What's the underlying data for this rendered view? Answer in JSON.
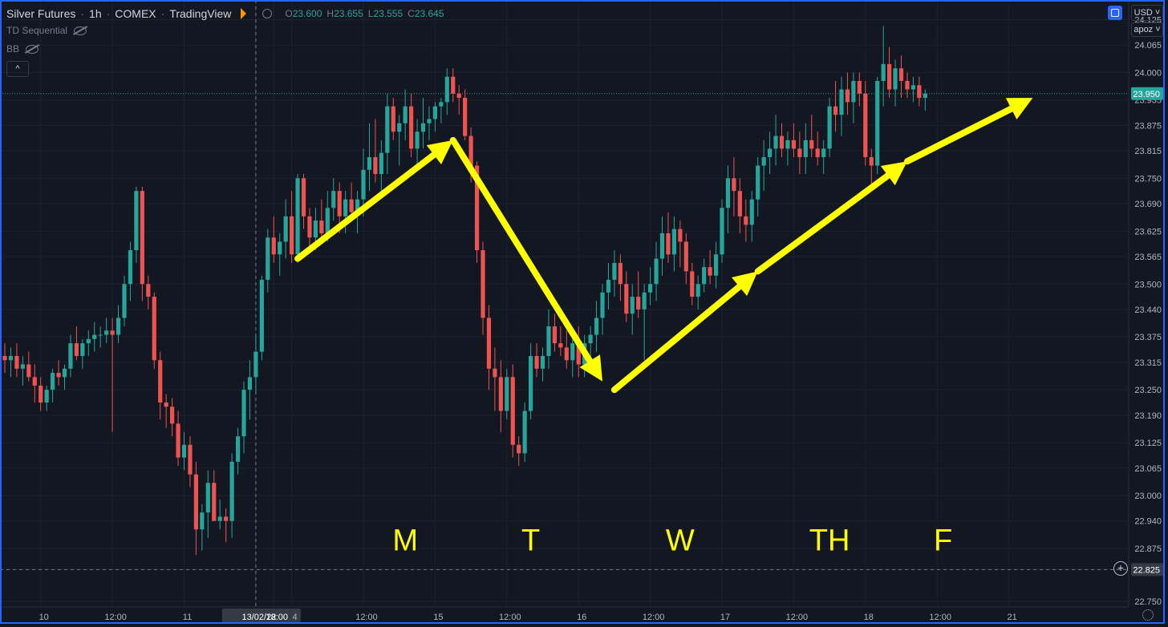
{
  "header": {
    "symbol": "Silver Futures",
    "interval": "1h",
    "exchange": "COMEX",
    "platform": "TradingView",
    "ohlc": {
      "o_label": "O",
      "o": "23.600",
      "h_label": "H",
      "h": "23.655",
      "l_label": "L",
      "l": "23.555",
      "c_label": "C",
      "c": "23.645"
    }
  },
  "indicators": [
    "TD Sequential",
    "BB"
  ],
  "toolbar": {
    "currency": "USD",
    "user": "apoz",
    "collapse_glyph": "^"
  },
  "colors": {
    "background": "#131722",
    "up": "#26a69a",
    "down": "#ef5350",
    "annotation": "#ffff00",
    "frame": "#2962ff"
  },
  "chart_data": {
    "type": "candlestick",
    "ylim": [
      22.75,
      24.16
    ],
    "y_ticks": [
      "24.125",
      "24.065",
      "24.000",
      "23.935",
      "23.875",
      "23.815",
      "23.750",
      "23.690",
      "23.625",
      "23.565",
      "23.500",
      "23.440",
      "23.375",
      "23.315",
      "23.250",
      "23.190",
      "23.125",
      "23.065",
      "23.000",
      "22.940",
      "22.875",
      "22.825",
      "22.750"
    ],
    "x_ticks": [
      {
        "label": "10",
        "index": 6
      },
      {
        "label": "12:00",
        "index": 18
      },
      {
        "label": "11",
        "index": 30
      },
      {
        "label": "13/02/22",
        "index": 42
      },
      {
        "label": "18:00",
        "index": 45
      },
      {
        "label": "4",
        "index": 48
      },
      {
        "label": "12:00",
        "index": 60
      },
      {
        "label": "15",
        "index": 72
      },
      {
        "label": "12:00",
        "index": 84
      },
      {
        "label": "16",
        "index": 96
      },
      {
        "label": "12:00",
        "index": 108
      },
      {
        "label": "17",
        "index": 120
      },
      {
        "label": "12:00",
        "index": 132
      },
      {
        "label": "18",
        "index": 144
      },
      {
        "label": "12:00",
        "index": 156
      },
      {
        "label": "21",
        "index": 168
      }
    ],
    "crosshair": {
      "index": 42,
      "value_label": "22.825",
      "value": 22.825
    },
    "last_price": {
      "value": 23.95,
      "label": "23.950"
    },
    "day_labels": [
      {
        "text": "M",
        "index": 67,
        "value": 22.87
      },
      {
        "text": "T",
        "index": 88,
        "value": 22.87
      },
      {
        "text": "W",
        "index": 113,
        "value": 22.87
      },
      {
        "text": "TH",
        "index": 138,
        "value": 22.87
      },
      {
        "text": "F",
        "index": 157,
        "value": 22.87
      }
    ],
    "arrows": [
      {
        "from": [
          49,
          23.56
        ],
        "to": [
          75,
          23.84
        ]
      },
      {
        "from": [
          75,
          23.84
        ],
        "to": [
          100,
          23.27
        ]
      },
      {
        "from": [
          102,
          23.25
        ],
        "to": [
          126,
          23.53
        ]
      },
      {
        "from": [
          126,
          23.53
        ],
        "to": [
          151,
          23.79
        ]
      },
      {
        "from": [
          151,
          23.79
        ],
        "to": [
          172,
          23.94
        ]
      }
    ],
    "candles": [
      [
        23.33,
        23.36,
        23.29,
        23.32
      ],
      [
        23.32,
        23.35,
        23.28,
        23.33
      ],
      [
        23.33,
        23.36,
        23.28,
        23.3
      ],
      [
        23.3,
        23.33,
        23.26,
        23.31
      ],
      [
        23.31,
        23.34,
        23.27,
        23.28
      ],
      [
        23.28,
        23.31,
        23.22,
        23.26
      ],
      [
        23.26,
        23.28,
        23.2,
        23.22
      ],
      [
        23.22,
        23.26,
        23.2,
        23.25
      ],
      [
        23.25,
        23.3,
        23.22,
        23.29
      ],
      [
        23.29,
        23.32,
        23.26,
        23.28
      ],
      [
        23.28,
        23.31,
        23.25,
        23.3
      ],
      [
        23.3,
        23.38,
        23.28,
        23.36
      ],
      [
        23.36,
        23.4,
        23.32,
        23.33
      ],
      [
        23.33,
        23.37,
        23.3,
        23.36
      ],
      [
        23.36,
        23.39,
        23.33,
        23.37
      ],
      [
        23.37,
        23.41,
        23.34,
        23.38
      ],
      [
        23.38,
        23.4,
        23.35,
        23.38
      ],
      [
        23.38,
        23.42,
        23.36,
        23.39
      ],
      [
        23.39,
        23.42,
        23.15,
        23.38
      ],
      [
        23.38,
        23.45,
        23.36,
        23.42
      ],
      [
        23.42,
        23.52,
        23.4,
        23.5
      ],
      [
        23.5,
        23.6,
        23.46,
        23.58
      ],
      [
        23.58,
        23.73,
        23.55,
        23.72
      ],
      [
        23.72,
        23.73,
        23.46,
        23.5
      ],
      [
        23.5,
        23.52,
        23.44,
        23.47
      ],
      [
        23.47,
        23.48,
        23.3,
        23.32
      ],
      [
        23.32,
        23.34,
        23.18,
        23.22
      ],
      [
        23.22,
        23.24,
        23.16,
        23.21
      ],
      [
        23.21,
        23.23,
        23.14,
        23.17
      ],
      [
        23.17,
        23.2,
        23.07,
        23.09
      ],
      [
        23.09,
        23.15,
        23.06,
        23.12
      ],
      [
        23.12,
        23.14,
        23.02,
        23.05
      ],
      [
        23.05,
        23.08,
        22.86,
        22.92
      ],
      [
        22.92,
        22.98,
        22.87,
        22.96
      ],
      [
        22.96,
        23.06,
        22.9,
        23.03
      ],
      [
        23.03,
        23.06,
        22.94,
        22.94
      ],
      [
        22.94,
        22.99,
        22.92,
        22.95
      ],
      [
        22.95,
        22.97,
        22.89,
        22.94
      ],
      [
        22.94,
        23.1,
        22.9,
        23.08
      ],
      [
        23.08,
        23.16,
        23.05,
        23.14
      ],
      [
        23.14,
        23.27,
        23.1,
        23.25
      ],
      [
        23.25,
        23.32,
        23.18,
        23.28
      ],
      [
        23.28,
        23.38,
        23.24,
        23.34
      ],
      [
        23.34,
        23.52,
        23.32,
        23.51
      ],
      [
        23.51,
        23.63,
        23.48,
        23.61
      ],
      [
        23.61,
        23.66,
        23.55,
        23.57
      ],
      [
        23.57,
        23.62,
        23.52,
        23.6
      ],
      [
        23.6,
        23.7,
        23.56,
        23.66
      ],
      [
        23.66,
        23.72,
        23.55,
        23.57
      ],
      [
        23.57,
        23.76,
        23.55,
        23.75
      ],
      [
        23.75,
        23.76,
        23.63,
        23.66
      ],
      [
        23.66,
        23.68,
        23.58,
        23.61
      ],
      [
        23.61,
        23.68,
        23.58,
        23.65
      ],
      [
        23.65,
        23.7,
        23.6,
        23.62
      ],
      [
        23.62,
        23.72,
        23.6,
        23.68
      ],
      [
        23.68,
        23.75,
        23.65,
        23.72
      ],
      [
        23.72,
        23.74,
        23.62,
        23.66
      ],
      [
        23.66,
        23.72,
        23.62,
        23.7
      ],
      [
        23.7,
        23.74,
        23.66,
        23.67
      ],
      [
        23.67,
        23.72,
        23.62,
        23.7
      ],
      [
        23.7,
        23.82,
        23.66,
        23.77
      ],
      [
        23.77,
        23.88,
        23.72,
        23.8
      ],
      [
        23.8,
        23.89,
        23.74,
        23.76
      ],
      [
        23.76,
        23.84,
        23.72,
        23.81
      ],
      [
        23.81,
        23.95,
        23.76,
        23.92
      ],
      [
        23.92,
        23.94,
        23.84,
        23.86
      ],
      [
        23.86,
        23.9,
        23.78,
        23.88
      ],
      [
        23.88,
        23.96,
        23.84,
        23.92
      ],
      [
        23.92,
        23.95,
        23.8,
        23.82
      ],
      [
        23.82,
        23.89,
        23.78,
        23.86
      ],
      [
        23.86,
        23.94,
        23.82,
        23.88
      ],
      [
        23.88,
        23.92,
        23.84,
        23.89
      ],
      [
        23.89,
        23.93,
        23.86,
        23.92
      ],
      [
        23.92,
        23.94,
        23.88,
        23.93
      ],
      [
        23.93,
        24.01,
        23.9,
        23.99
      ],
      [
        23.99,
        24.01,
        23.93,
        23.95
      ],
      [
        23.95,
        23.97,
        23.9,
        23.94
      ],
      [
        23.94,
        23.96,
        23.84,
        23.85
      ],
      [
        23.85,
        23.87,
        23.74,
        23.78
      ],
      [
        23.78,
        23.79,
        23.55,
        23.58
      ],
      [
        23.58,
        23.6,
        23.38,
        23.42
      ],
      [
        23.42,
        23.45,
        23.25,
        23.3
      ],
      [
        23.3,
        23.35,
        23.2,
        23.28
      ],
      [
        23.28,
        23.32,
        23.15,
        23.2
      ],
      [
        23.2,
        23.3,
        23.18,
        23.28
      ],
      [
        23.28,
        23.31,
        23.09,
        23.12
      ],
      [
        23.12,
        23.14,
        23.07,
        23.1
      ],
      [
        23.1,
        23.22,
        23.08,
        23.2
      ],
      [
        23.2,
        23.36,
        23.18,
        23.33
      ],
      [
        23.33,
        23.36,
        23.28,
        23.3
      ],
      [
        23.3,
        23.35,
        23.27,
        23.33
      ],
      [
        23.33,
        23.44,
        23.3,
        23.4
      ],
      [
        23.4,
        23.43,
        23.34,
        23.36
      ],
      [
        23.36,
        23.4,
        23.33,
        23.35
      ],
      [
        23.35,
        23.39,
        23.3,
        23.32
      ],
      [
        23.32,
        23.38,
        23.28,
        23.36
      ],
      [
        23.36,
        23.4,
        23.28,
        23.31
      ],
      [
        23.31,
        23.38,
        23.28,
        23.36
      ],
      [
        23.36,
        23.4,
        23.32,
        23.38
      ],
      [
        23.38,
        23.46,
        23.34,
        23.42
      ],
      [
        23.42,
        23.5,
        23.38,
        23.48
      ],
      [
        23.48,
        23.55,
        23.44,
        23.51
      ],
      [
        23.51,
        23.58,
        23.47,
        23.55
      ],
      [
        23.55,
        23.57,
        23.46,
        23.5
      ],
      [
        23.5,
        23.53,
        23.41,
        23.43
      ],
      [
        23.43,
        23.5,
        23.38,
        23.47
      ],
      [
        23.47,
        23.53,
        23.42,
        23.44
      ],
      [
        23.44,
        23.5,
        23.32,
        23.48
      ],
      [
        23.48,
        23.54,
        23.45,
        23.5
      ],
      [
        23.5,
        23.6,
        23.46,
        23.56
      ],
      [
        23.56,
        23.66,
        23.52,
        23.62
      ],
      [
        23.62,
        23.67,
        23.55,
        23.57
      ],
      [
        23.57,
        23.66,
        23.53,
        23.63
      ],
      [
        23.63,
        23.65,
        23.54,
        23.6
      ],
      [
        23.6,
        23.62,
        23.5,
        23.53
      ],
      [
        23.53,
        23.55,
        23.45,
        23.47
      ],
      [
        23.47,
        23.52,
        23.44,
        23.5
      ],
      [
        23.5,
        23.56,
        23.48,
        23.54
      ],
      [
        23.54,
        23.58,
        23.5,
        23.52
      ],
      [
        23.52,
        23.6,
        23.49,
        23.57
      ],
      [
        23.57,
        23.7,
        23.55,
        23.68
      ],
      [
        23.68,
        23.78,
        23.62,
        23.75
      ],
      [
        23.75,
        23.8,
        23.66,
        23.72
      ],
      [
        23.72,
        23.75,
        23.62,
        23.66
      ],
      [
        23.66,
        23.7,
        23.6,
        23.64
      ],
      [
        23.64,
        23.72,
        23.6,
        23.7
      ],
      [
        23.7,
        23.8,
        23.66,
        23.78
      ],
      [
        23.78,
        23.84,
        23.72,
        23.8
      ],
      [
        23.8,
        23.86,
        23.76,
        23.82
      ],
      [
        23.82,
        23.9,
        23.78,
        23.85
      ],
      [
        23.85,
        23.88,
        23.8,
        23.82
      ],
      [
        23.82,
        23.86,
        23.78,
        23.84
      ],
      [
        23.84,
        23.88,
        23.8,
        23.82
      ],
      [
        23.82,
        23.86,
        23.76,
        23.8
      ],
      [
        23.8,
        23.88,
        23.76,
        23.84
      ],
      [
        23.84,
        23.9,
        23.8,
        23.82
      ],
      [
        23.82,
        23.86,
        23.78,
        23.8
      ],
      [
        23.8,
        23.84,
        23.76,
        23.82
      ],
      [
        23.82,
        23.94,
        23.8,
        23.92
      ],
      [
        23.92,
        23.98,
        23.86,
        23.9
      ],
      [
        23.9,
        23.99,
        23.85,
        23.96
      ],
      [
        23.96,
        24.0,
        23.9,
        23.93
      ],
      [
        23.93,
        24.0,
        23.88,
        23.98
      ],
      [
        23.98,
        24.0,
        23.92,
        23.95
      ],
      [
        23.95,
        23.98,
        23.78,
        23.8
      ],
      [
        23.8,
        23.82,
        23.72,
        23.78
      ],
      [
        23.78,
        23.99,
        23.76,
        23.98
      ],
      [
        23.98,
        24.11,
        23.92,
        24.02
      ],
      [
        24.02,
        24.06,
        23.94,
        23.96
      ],
      [
        23.96,
        24.03,
        23.92,
        24.01
      ],
      [
        24.01,
        24.04,
        23.94,
        23.98
      ],
      [
        23.98,
        24.0,
        23.94,
        23.96
      ],
      [
        23.96,
        23.99,
        23.93,
        23.97
      ],
      [
        23.97,
        23.99,
        23.92,
        23.94
      ],
      [
        23.94,
        23.96,
        23.91,
        23.95
      ]
    ]
  }
}
